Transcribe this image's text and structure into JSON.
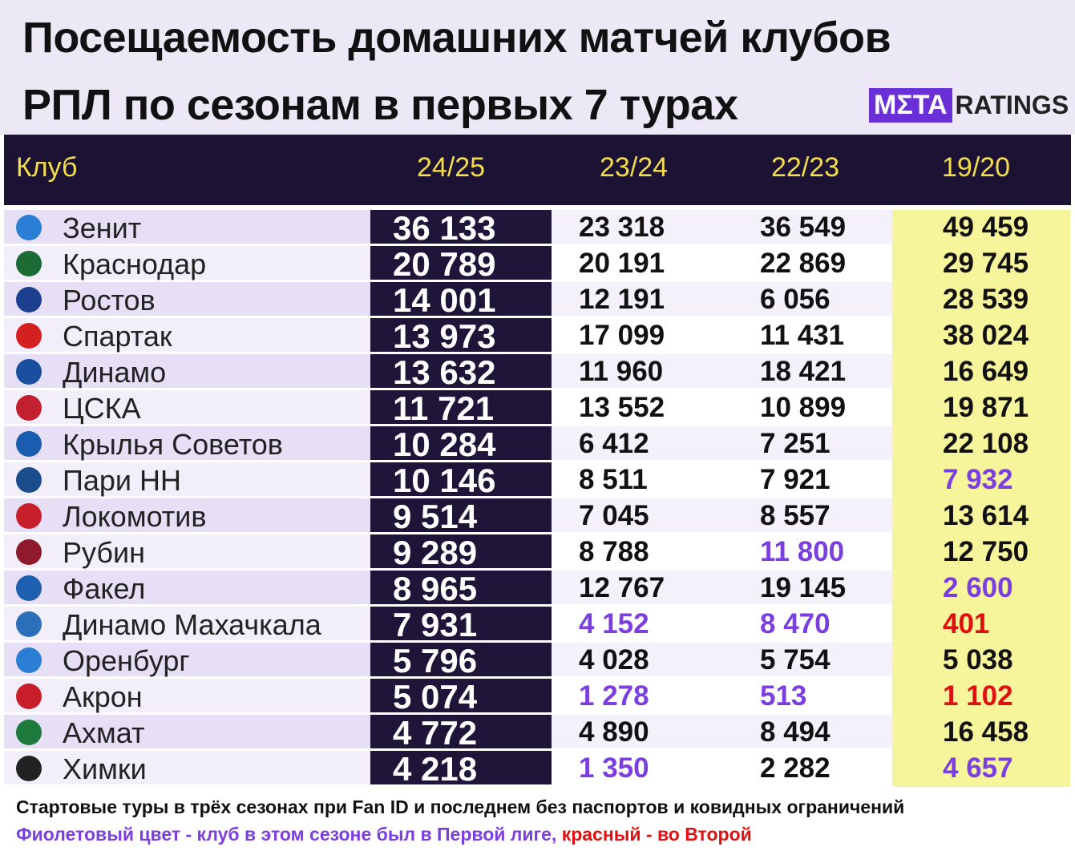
{
  "header": {
    "title": [
      "Посещаемость домашних матчей клубов",
      "РПЛ по сезонам в первых 7 турах"
    ],
    "logo": {
      "mark": "MΣTA",
      "word": "RATINGS"
    }
  },
  "table": {
    "columns": [
      "Клуб",
      "24/25",
      "23/24",
      "22/23",
      "19/20"
    ],
    "rows": [
      {
        "club": "Зенит",
        "values": [
          "36 133",
          "23 318",
          "36 549",
          "49 459"
        ],
        "colors": [
          "#ffffff",
          "#111111",
          "#111111",
          "#111111"
        ]
      },
      {
        "club": "Краснодар",
        "values": [
          "20 789",
          "20 191",
          "22 869",
          "29 745"
        ],
        "colors": [
          "#ffffff",
          "#111111",
          "#111111",
          "#111111"
        ]
      },
      {
        "club": "Ростов",
        "values": [
          "14 001",
          "12 191",
          "6 056",
          "28 539"
        ],
        "colors": [
          "#ffffff",
          "#111111",
          "#111111",
          "#111111"
        ]
      },
      {
        "club": "Спартак",
        "values": [
          "13 973",
          "17 099",
          "11 431",
          "38 024"
        ],
        "colors": [
          "#ffffff",
          "#111111",
          "#111111",
          "#111111"
        ]
      },
      {
        "club": "Динамо",
        "values": [
          "13 632",
          "11 960",
          "18 421",
          "16 649"
        ],
        "colors": [
          "#ffffff",
          "#111111",
          "#111111",
          "#111111"
        ]
      },
      {
        "club": "ЦСКА",
        "values": [
          "11 721",
          "13 552",
          "10 899",
          "19 871"
        ],
        "colors": [
          "#ffffff",
          "#111111",
          "#111111",
          "#111111"
        ]
      },
      {
        "club": "Крылья Советов",
        "values": [
          "10 284",
          "6 412",
          "7 251",
          "22 108"
        ],
        "colors": [
          "#ffffff",
          "#111111",
          "#111111",
          "#111111"
        ]
      },
      {
        "club": "Пари НН",
        "values": [
          "10 146",
          "8 511",
          "7 921",
          "7 932"
        ],
        "colors": [
          "#ffffff",
          "#111111",
          "#111111",
          "#7b3fe0"
        ]
      },
      {
        "club": "Локомотив",
        "values": [
          "9 514",
          "7 045",
          "8 557",
          "13 614"
        ],
        "colors": [
          "#ffffff",
          "#111111",
          "#111111",
          "#111111"
        ]
      },
      {
        "club": "Рубин",
        "values": [
          "9 289",
          "8 788",
          "11 800",
          "12 750"
        ],
        "colors": [
          "#ffffff",
          "#111111",
          "#7b3fe0",
          "#111111"
        ]
      },
      {
        "club": "Факел",
        "values": [
          "8 965",
          "12 767",
          "19 145",
          "2 600"
        ],
        "colors": [
          "#ffffff",
          "#111111",
          "#111111",
          "#7b3fe0"
        ]
      },
      {
        "club": "Динамо Махачкала",
        "values": [
          "7 931",
          "4 152",
          "8 470",
          "401"
        ],
        "colors": [
          "#ffffff",
          "#7b3fe0",
          "#7b3fe0",
          "#e01010"
        ]
      },
      {
        "club": "Оренбург",
        "values": [
          "5 796",
          "4 028",
          "5 754",
          "5 038"
        ],
        "colors": [
          "#ffffff",
          "#111111",
          "#111111",
          "#111111"
        ]
      },
      {
        "club": "Акрон",
        "values": [
          "5 074",
          "1 278",
          "513",
          "1 102"
        ],
        "colors": [
          "#ffffff",
          "#7b3fe0",
          "#7b3fe0",
          "#e01010"
        ]
      },
      {
        "club": "Ахмат",
        "values": [
          "4 772",
          "4 890",
          "8 494",
          "16 458"
        ],
        "colors": [
          "#ffffff",
          "#111111",
          "#111111",
          "#111111"
        ]
      },
      {
        "club": "Химки",
        "values": [
          "4 218",
          "1 350",
          "2 282",
          "4 657"
        ],
        "colors": [
          "#ffffff",
          "#7b3fe0",
          "#111111",
          "#7b3fe0"
        ]
      }
    ]
  },
  "footnotes": {
    "line1": "Стартовые туры в трёх сезонах при Fan ID и последнем без паспортов и ковидных ограничений",
    "line2_purple": "Фиолетовый цвет - клуб в этом сезоне был в Первой лиге,",
    "line2_red": " красный - во Второй"
  }
}
